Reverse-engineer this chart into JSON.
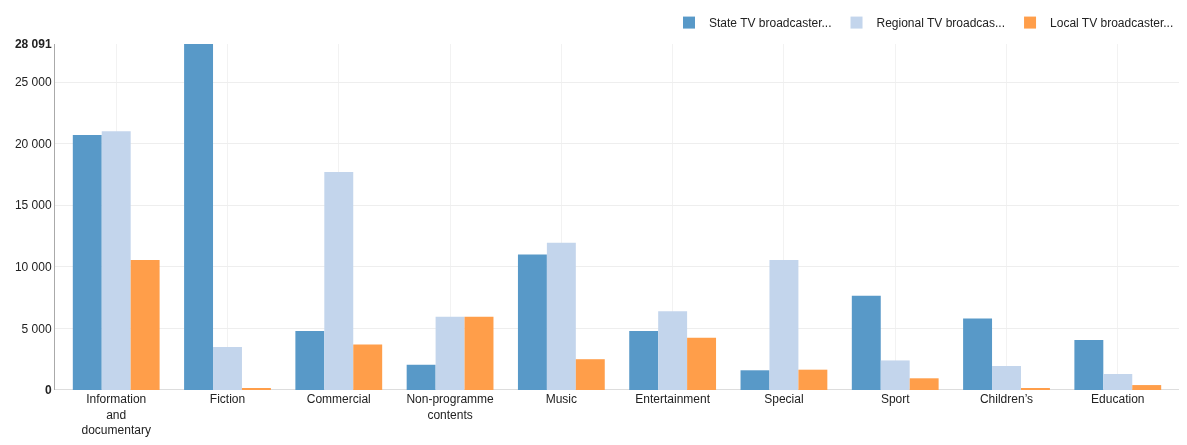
{
  "chart_data": {
    "type": "bar",
    "categories": [
      "Information and documentary",
      "Fiction",
      "Commercial",
      "Non-programme contents",
      "Music",
      "Entertainment",
      "Special",
      "Sport",
      "Children’s",
      "Education"
    ],
    "series": [
      {
        "name": "State TV broadcaster...",
        "color": "#5899c8",
        "values": [
          20700,
          28091,
          4800,
          2050,
          11000,
          4800,
          1600,
          7650,
          5800,
          4050
        ]
      },
      {
        "name": "Regional TV broadcas...",
        "color": "#c3d5ec",
        "values": [
          21000,
          3500,
          17700,
          5950,
          11950,
          6400,
          10550,
          2400,
          1950,
          1300
        ]
      },
      {
        "name": "Local TV broadcaster...",
        "color": "#ff9e4a",
        "values": [
          10550,
          100,
          3700,
          5950,
          2500,
          4250,
          1650,
          950,
          150,
          400
        ]
      }
    ],
    "ylim": [
      0,
      28091
    ],
    "yticks": [
      0,
      {
        "value": 5000,
        "label": "5 000"
      },
      {
        "value": 10000,
        "label": "10 000"
      },
      {
        "value": 15000,
        "label": "15 000"
      },
      {
        "value": 20000,
        "label": "20 000"
      },
      {
        "value": 25000,
        "label": "25 000"
      },
      {
        "value": 28091,
        "label": "28 091"
      }
    ],
    "grid": true,
    "legend": "top right"
  }
}
